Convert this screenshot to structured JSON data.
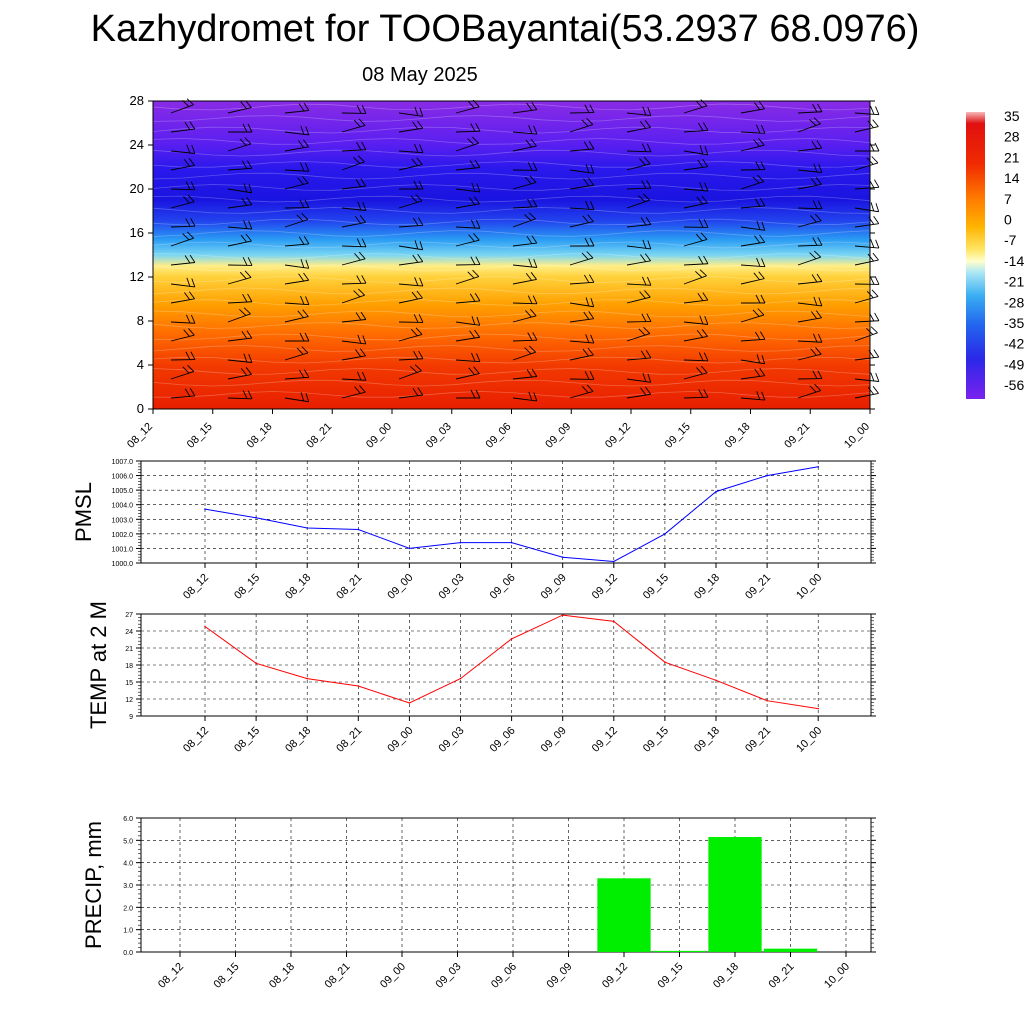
{
  "title": "Kazhydromet for TOOBayantai(53.2937 68.0976)",
  "subtitle": "08 May 2025",
  "time_labels": [
    "08_12",
    "08_15",
    "08_18",
    "08_21",
    "09_00",
    "09_03",
    "09_06",
    "09_09",
    "09_12",
    "09_15",
    "09_18",
    "09_21",
    "10_00"
  ],
  "chart_data": [
    {
      "type": "heatmap",
      "title": "",
      "x_categories": [
        "08_12",
        "08_15",
        "08_18",
        "08_21",
        "09_00",
        "09_03",
        "09_06",
        "09_09",
        "09_12",
        "09_15",
        "09_18",
        "09_21",
        "10_00"
      ],
      "y_ticks": [
        0,
        4,
        8,
        12,
        16,
        20,
        24,
        28
      ],
      "ylim": [
        0,
        28
      ],
      "colorbar_ticks": [
        "35",
        "28",
        "21",
        "14",
        "7",
        "0",
        "-7",
        "-14",
        "-21",
        "-28",
        "-35",
        "-42",
        "-49",
        "-56"
      ],
      "colorbar_range": [
        -56,
        35
      ],
      "colors": {
        "top": "#8a1fe6",
        "mid_blue": "#1a1ae8",
        "cyan": "#7ad6f0",
        "yellow": "#ffee88",
        "orange": "#ff9a00",
        "red": "#ee2200"
      }
    },
    {
      "type": "line",
      "ylabel": "PMSL",
      "x": [
        "08_12",
        "08_15",
        "08_18",
        "08_21",
        "09_00",
        "09_03",
        "09_06",
        "09_09",
        "09_12",
        "09_15",
        "09_18",
        "09_21",
        "10_00"
      ],
      "y_ticks": [
        "1000.0",
        "1001.0",
        "1002.0",
        "1003.0",
        "1004.0",
        "1005.0",
        "1006.0",
        "1007.0"
      ],
      "ylim": [
        1000,
        1007
      ],
      "series": [
        {
          "values": [
            1003.7,
            1003.1,
            1002.4,
            1002.3,
            1001.0,
            1001.4,
            1001.4,
            1000.4,
            1000.1,
            1002.0,
            1004.9,
            1006.0,
            1006.6
          ],
          "color": "#0000ff"
        }
      ]
    },
    {
      "type": "line",
      "ylabel": "TEMP at 2 M",
      "x": [
        "08_12",
        "08_15",
        "08_18",
        "08_21",
        "09_00",
        "09_03",
        "09_06",
        "09_09",
        "09_12",
        "09_15",
        "09_18",
        "09_21",
        "10_00"
      ],
      "y_ticks": [
        "9",
        "12",
        "15",
        "18",
        "21",
        "24",
        "27"
      ],
      "ylim": [
        9,
        27
      ],
      "series": [
        {
          "values": [
            24.8,
            18.3,
            15.6,
            14.3,
            11.3,
            15.6,
            22.6,
            26.8,
            25.7,
            18.5,
            15.3,
            11.7,
            10.3
          ],
          "color": "#ff0000"
        }
      ]
    },
    {
      "type": "bar",
      "ylabel": "PRECIP, mm",
      "categories": [
        "08_12",
        "08_15",
        "08_18",
        "08_21",
        "09_00",
        "09_03",
        "09_06",
        "09_09",
        "09_12",
        "09_15",
        "09_18",
        "09_21",
        "10_00"
      ],
      "y_ticks": [
        "0.0",
        "1.0",
        "2.0",
        "3.0",
        "4.0",
        "5.0",
        "6.0"
      ],
      "ylim": [
        0,
        6
      ],
      "values": [
        0,
        0,
        0,
        0,
        0,
        0,
        0,
        0,
        3.3,
        0.05,
        5.15,
        0.15,
        0
      ],
      "color": "#00ee00"
    }
  ]
}
